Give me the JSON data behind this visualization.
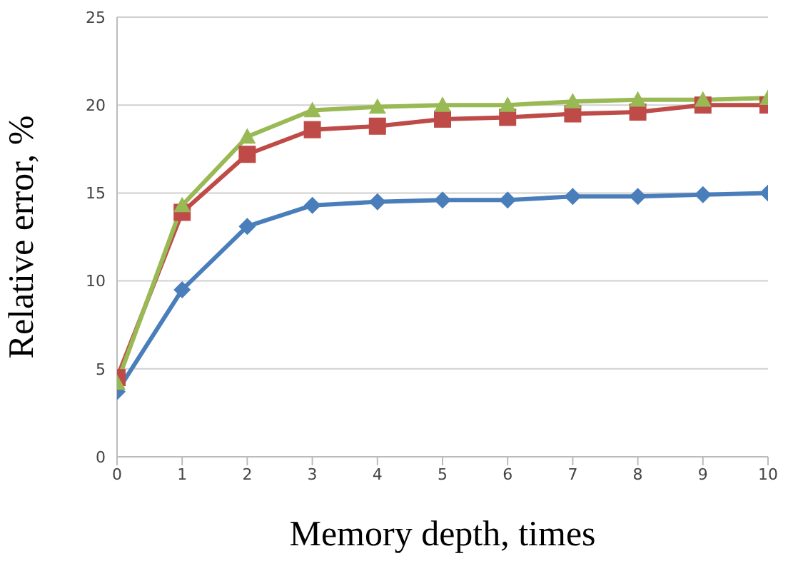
{
  "chart_data": {
    "type": "line",
    "xlabel": "Memory depth, times",
    "ylabel": "Relative error, %",
    "x": [
      0,
      1,
      2,
      3,
      4,
      5,
      6,
      7,
      8,
      9,
      10
    ],
    "series": [
      {
        "color": "#4a7ebb",
        "marker": "diamond",
        "values": [
          3.7,
          9.5,
          13.1,
          14.3,
          14.5,
          14.6,
          14.6,
          14.8,
          14.8,
          14.9,
          15.0
        ]
      },
      {
        "color": "#be4b48",
        "marker": "square",
        "values": [
          4.5,
          13.9,
          17.2,
          18.6,
          18.8,
          19.2,
          19.3,
          19.5,
          19.6,
          20.0,
          20.0
        ]
      },
      {
        "color": "#98b954",
        "marker": "triangle",
        "values": [
          4.2,
          14.3,
          18.2,
          19.7,
          19.9,
          20.0,
          20.0,
          20.2,
          20.3,
          20.3,
          20.4
        ]
      }
    ],
    "xlim": [
      0,
      10
    ],
    "xticks": [
      0,
      1,
      2,
      3,
      4,
      5,
      6,
      7,
      8,
      9,
      10
    ],
    "ylim": [
      0,
      25
    ],
    "yticks": [
      0,
      5,
      10,
      15,
      20,
      25
    ],
    "grid": "y",
    "legend": false,
    "line_style": "solid"
  }
}
